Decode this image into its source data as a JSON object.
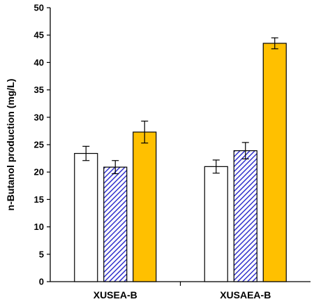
{
  "chart_data": {
    "type": "bar",
    "title": "",
    "xlabel": "",
    "ylabel": "n-Butanol production (mg/L)",
    "ylim": [
      0,
      50
    ],
    "yticks": [
      0,
      5,
      10,
      15,
      20,
      25,
      30,
      35,
      40,
      45,
      50
    ],
    "categories": [
      "XUSEA-B",
      "XUSAEA-B"
    ],
    "legend": "none",
    "grid": false,
    "series": [
      {
        "values": [
          23.4,
          21.0
        ],
        "errors": [
          1.3,
          1.2
        ],
        "color": "#ffffff",
        "pattern": "none"
      },
      {
        "values": [
          20.9,
          23.9
        ],
        "errors": [
          1.2,
          1.5
        ],
        "color": "#3333cc",
        "pattern": "diagonal-hatch"
      },
      {
        "values": [
          27.3,
          43.5
        ],
        "errors": [
          2.0,
          1.0
        ],
        "color": "#ffc000",
        "pattern": "none"
      }
    ]
  }
}
